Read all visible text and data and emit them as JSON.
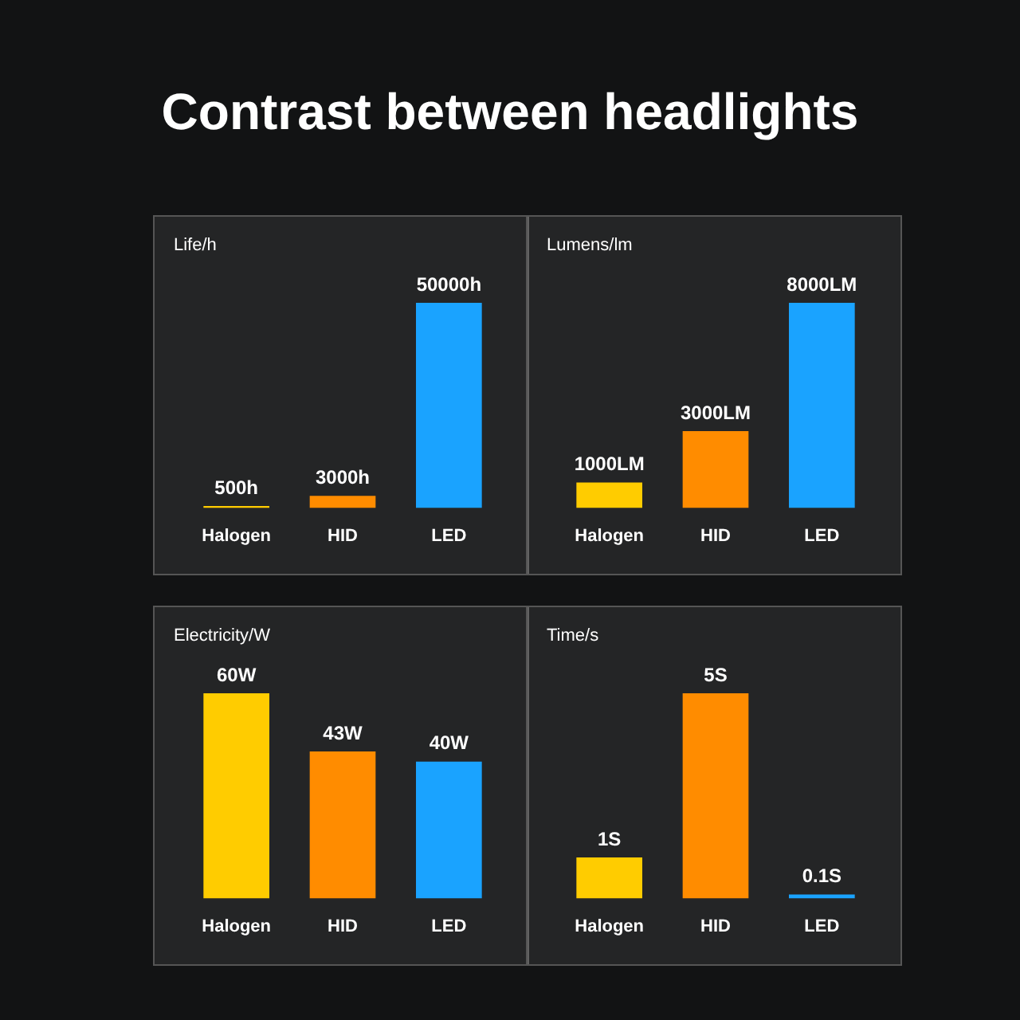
{
  "chart_data": [
    {
      "type": "other",
      "title": "Contrast between headlights"
    },
    {
      "type": "bar",
      "title": "Life/h",
      "categories": [
        "Halogen",
        "HID",
        "LED"
      ],
      "values": [
        500,
        3000,
        50000
      ],
      "colors": [
        "#ffcc00",
        "#ff8c00",
        "#1aa3ff"
      ],
      "value_labels": [
        "500h",
        "3000h",
        "50000h"
      ]
    },
    {
      "type": "bar",
      "title": "Lumens/lm",
      "categories": [
        "Halogen",
        "HID",
        "LED"
      ],
      "values": [
        1000,
        3000,
        8000
      ],
      "colors": [
        "#ffcc00",
        "#ff8c00",
        "#1aa3ff"
      ],
      "value_labels": [
        "1000LM",
        "3000LM",
        "8000LM"
      ]
    },
    {
      "type": "bar",
      "title": "Electricity/W",
      "categories": [
        "Halogen",
        "HID",
        "LED"
      ],
      "values": [
        60,
        43,
        40
      ],
      "colors": [
        "#ffcc00",
        "#ff8c00",
        "#1aa3ff"
      ],
      "value_labels": [
        "60W",
        "43W",
        "40W"
      ]
    },
    {
      "type": "bar",
      "title": "Time/s",
      "categories": [
        "Halogen",
        "HID",
        "LED"
      ],
      "values": [
        1,
        5,
        0.1
      ],
      "colors": [
        "#ffcc00",
        "#ff8c00",
        "#1aa3ff"
      ],
      "value_labels": [
        "1S",
        "5S",
        "0.1S"
      ]
    }
  ]
}
